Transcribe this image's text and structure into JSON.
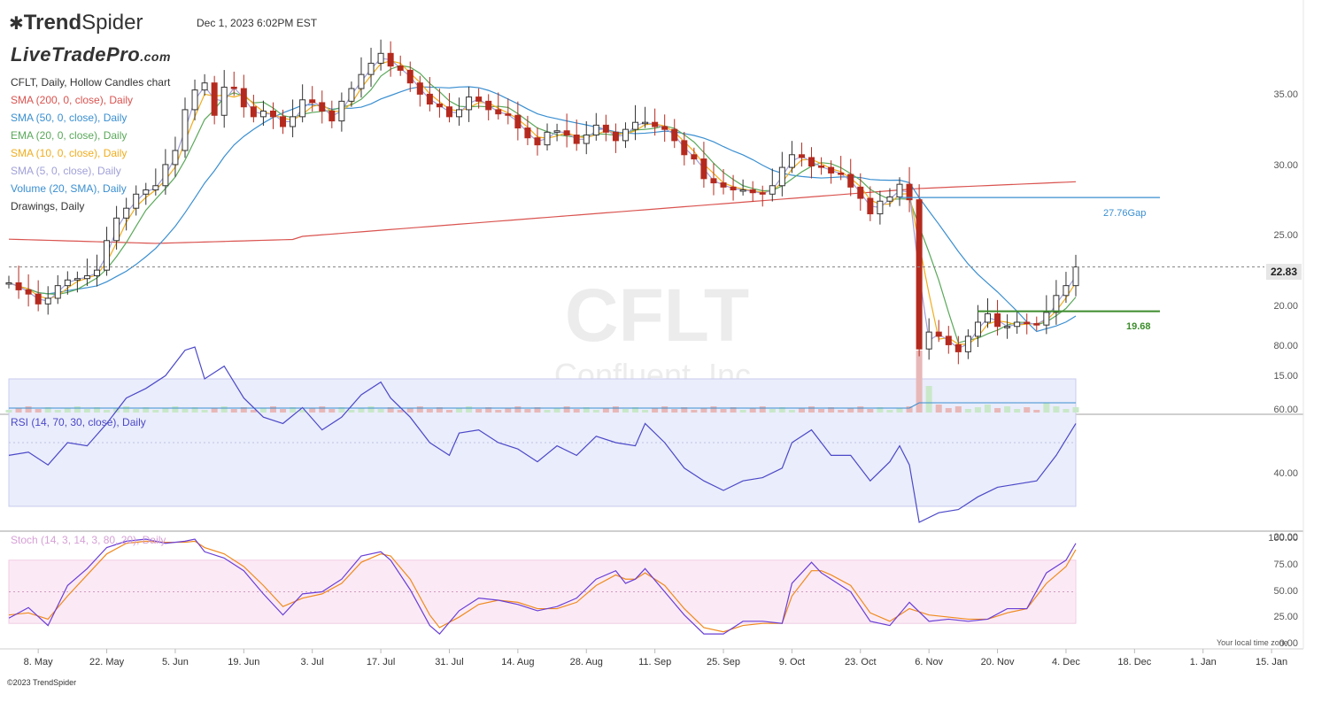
{
  "header": {
    "logo_trend": "Trend",
    "logo_spider": "Spider",
    "timestamp": "Dec 1, 2023 6:02PM EST",
    "brand": "LiveTradePro",
    "brand_domain": ".com"
  },
  "legend": [
    {
      "text": "CFLT, Daily, Hollow Candles chart",
      "color": "#333333"
    },
    {
      "text": "SMA (200, 0, close), Daily",
      "color": "#d9534f"
    },
    {
      "text": "SMA (50, 0, close), Daily",
      "color": "#3a8fd1"
    },
    {
      "text": "EMA (20, 0, close), Daily",
      "color": "#5aa85a"
    },
    {
      "text": "SMA (10, 0, close), Daily",
      "color": "#f0ad1e"
    },
    {
      "text": "SMA (5, 0, close), Daily",
      "color": "#a0a0d8"
    },
    {
      "text": "Volume (20, SMA), Daily",
      "color": "#3a8fd1"
    },
    {
      "text": "Drawings, Daily",
      "color": "#333333"
    }
  ],
  "watermark": {
    "ticker": "CFLT",
    "company": "Confluent, Inc."
  },
  "rsi_title": "RSI (14, 70, 30, close), Daily",
  "stoch_title": "Stoch (14, 3, 14, 3, 80, 20), Daily",
  "footer": "©2023 TrendSpider",
  "local_time": "Your local time zone",
  "colors": {
    "up": "#ffffff",
    "down": "#b52a1e",
    "sma200": "#d9534f",
    "sma50": "#3a8fd1",
    "ema20": "#5aa85a",
    "sma10": "#f0ad1e",
    "sma5": "#a0a0d8",
    "rsi": "#4b48c8",
    "stoch_k": "#6a3fd6",
    "stoch_d": "#f08a1e",
    "rsi_band": "#eaedfb",
    "stoch_band": "#fbeaf5"
  },
  "chart_data": {
    "type": "candlestick",
    "price_axis": {
      "ticks": [
        15,
        20,
        25,
        30,
        35
      ],
      "tick_labels": [
        "15.00",
        "20.00",
        "25.00",
        "30.00",
        "35.00"
      ]
    },
    "rsi_axis": {
      "ticks": [
        20,
        40,
        60,
        80
      ],
      "tick_labels": [
        "20.00",
        "40.00",
        "60.00",
        "80.00"
      ],
      "band": [
        30,
        70
      ]
    },
    "stoch_axis": {
      "ticks": [
        0,
        25,
        50,
        75,
        100
      ],
      "tick_labels": [
        "0.00",
        "25.00",
        "50.00",
        "75.00",
        "100.00"
      ],
      "band": [
        20,
        80
      ]
    },
    "x_labels": [
      "8. May",
      "22. May",
      "5. Jun",
      "19. Jun",
      "3. Jul",
      "17. Jul",
      "31. Jul",
      "14. Aug",
      "28. Aug",
      "11. Sep",
      "25. Sep",
      "9. Oct",
      "23. Oct",
      "6. Nov",
      "20. Nov",
      "4. Dec",
      "18. Dec",
      "1. Jan",
      "15. Jan"
    ],
    "x_label_days": [
      6,
      20,
      34,
      48,
      62,
      76,
      90,
      104,
      118,
      132,
      146,
      160,
      174,
      188,
      202,
      216,
      230,
      244,
      258
    ],
    "last_price": 22.83,
    "last_price_label": "22.83",
    "gap_level": 27.76,
    "gap_label": "27.76",
    "gap_suffix": "Gap",
    "support_level": 19.68,
    "support_label": "19.68",
    "close": [
      [
        0,
        21.7
      ],
      [
        2,
        21.2
      ],
      [
        4,
        20.9
      ],
      [
        6,
        20.2
      ],
      [
        8,
        20.6
      ],
      [
        10,
        21.5
      ],
      [
        12,
        21.9
      ],
      [
        14,
        22.0
      ],
      [
        16,
        22.2
      ],
      [
        18,
        22.6
      ],
      [
        20,
        24.7
      ],
      [
        22,
        26.3
      ],
      [
        24,
        27.0
      ],
      [
        26,
        28.0
      ],
      [
        28,
        28.3
      ],
      [
        30,
        28.6
      ],
      [
        32,
        30.1
      ],
      [
        34,
        31.1
      ],
      [
        36,
        34.0
      ],
      [
        38,
        35.4
      ],
      [
        40,
        35.9
      ],
      [
        42,
        33.6
      ],
      [
        44,
        35.6
      ],
      [
        46,
        35.5
      ],
      [
        48,
        34.2
      ],
      [
        50,
        33.5
      ],
      [
        52,
        33.9
      ],
      [
        54,
        33.5
      ],
      [
        56,
        32.8
      ],
      [
        58,
        33.5
      ],
      [
        60,
        34.7
      ],
      [
        62,
        34.5
      ],
      [
        64,
        33.9
      ],
      [
        66,
        33.2
      ],
      [
        68,
        34.6
      ],
      [
        70,
        35.5
      ],
      [
        72,
        36.5
      ],
      [
        74,
        37.3
      ],
      [
        76,
        38.0
      ],
      [
        78,
        37.1
      ],
      [
        80,
        36.8
      ],
      [
        82,
        35.9
      ],
      [
        84,
        35.1
      ],
      [
        86,
        34.4
      ],
      [
        88,
        34.2
      ],
      [
        90,
        33.5
      ],
      [
        92,
        34.0
      ],
      [
        94,
        34.9
      ],
      [
        96,
        34.6
      ],
      [
        98,
        34.0
      ],
      [
        100,
        33.7
      ],
      [
        102,
        33.6
      ],
      [
        104,
        32.7
      ],
      [
        106,
        32.0
      ],
      [
        108,
        31.5
      ],
      [
        110,
        32.4
      ],
      [
        112,
        32.5
      ],
      [
        114,
        32.2
      ],
      [
        116,
        31.6
      ],
      [
        118,
        32.2
      ],
      [
        120,
        32.9
      ],
      [
        122,
        32.4
      ],
      [
        124,
        31.8
      ],
      [
        126,
        32.6
      ],
      [
        128,
        33.1
      ],
      [
        130,
        33.1
      ],
      [
        132,
        32.8
      ],
      [
        134,
        32.6
      ],
      [
        136,
        31.8
      ],
      [
        138,
        30.8
      ],
      [
        140,
        30.5
      ],
      [
        142,
        29.1
      ],
      [
        144,
        28.8
      ],
      [
        146,
        28.5
      ],
      [
        148,
        28.3
      ],
      [
        150,
        28.3
      ],
      [
        152,
        28.1
      ],
      [
        154,
        28.0
      ],
      [
        156,
        28.6
      ],
      [
        158,
        29.9
      ],
      [
        160,
        30.8
      ],
      [
        162,
        30.6
      ],
      [
        164,
        30.0
      ],
      [
        166,
        29.9
      ],
      [
        168,
        29.5
      ],
      [
        170,
        29.4
      ],
      [
        172,
        28.5
      ],
      [
        174,
        27.7
      ],
      [
        176,
        26.6
      ],
      [
        178,
        27.5
      ],
      [
        180,
        27.8
      ],
      [
        182,
        28.7
      ],
      [
        184,
        27.6
      ],
      [
        186,
        17.0
      ],
      [
        188,
        18.2
      ],
      [
        190,
        17.9
      ],
      [
        192,
        17.3
      ],
      [
        194,
        16.8
      ],
      [
        196,
        17.9
      ],
      [
        198,
        18.9
      ],
      [
        200,
        19.5
      ],
      [
        202,
        18.6
      ],
      [
        204,
        18.6
      ],
      [
        206,
        18.9
      ],
      [
        208,
        18.8
      ],
      [
        210,
        18.7
      ],
      [
        212,
        19.6
      ],
      [
        214,
        20.8
      ],
      [
        216,
        21.5
      ],
      [
        218,
        22.83
      ]
    ],
    "rsi": [
      [
        0,
        46
      ],
      [
        4,
        47
      ],
      [
        8,
        43
      ],
      [
        12,
        50
      ],
      [
        16,
        49
      ],
      [
        20,
        56
      ],
      [
        24,
        64
      ],
      [
        28,
        67
      ],
      [
        32,
        71
      ],
      [
        36,
        79
      ],
      [
        38,
        80
      ],
      [
        40,
        70
      ],
      [
        44,
        74
      ],
      [
        48,
        64
      ],
      [
        52,
        58
      ],
      [
        56,
        56
      ],
      [
        60,
        61
      ],
      [
        64,
        54
      ],
      [
        68,
        58
      ],
      [
        72,
        65
      ],
      [
        76,
        69
      ],
      [
        78,
        64
      ],
      [
        82,
        58
      ],
      [
        86,
        50
      ],
      [
        90,
        46
      ],
      [
        92,
        53
      ],
      [
        96,
        54
      ],
      [
        100,
        50
      ],
      [
        104,
        48
      ],
      [
        108,
        44
      ],
      [
        112,
        49
      ],
      [
        116,
        46
      ],
      [
        120,
        52
      ],
      [
        124,
        50
      ],
      [
        128,
        49
      ],
      [
        130,
        56
      ],
      [
        134,
        50
      ],
      [
        138,
        42
      ],
      [
        142,
        38
      ],
      [
        146,
        35
      ],
      [
        150,
        38
      ],
      [
        154,
        39
      ],
      [
        158,
        42
      ],
      [
        160,
        50
      ],
      [
        164,
        54
      ],
      [
        168,
        46
      ],
      [
        172,
        46
      ],
      [
        176,
        38
      ],
      [
        180,
        44
      ],
      [
        182,
        49
      ],
      [
        184,
        43
      ],
      [
        186,
        25
      ],
      [
        190,
        28
      ],
      [
        194,
        29
      ],
      [
        198,
        33
      ],
      [
        202,
        36
      ],
      [
        206,
        37
      ],
      [
        210,
        38
      ],
      [
        214,
        46
      ],
      [
        218,
        56
      ]
    ],
    "stoch_k": [
      [
        0,
        25
      ],
      [
        4,
        35
      ],
      [
        8,
        18
      ],
      [
        12,
        56
      ],
      [
        16,
        72
      ],
      [
        20,
        92
      ],
      [
        24,
        98
      ],
      [
        28,
        100
      ],
      [
        32,
        96
      ],
      [
        36,
        98
      ],
      [
        38,
        100
      ],
      [
        40,
        88
      ],
      [
        44,
        82
      ],
      [
        48,
        70
      ],
      [
        52,
        48
      ],
      [
        56,
        28
      ],
      [
        60,
        48
      ],
      [
        64,
        50
      ],
      [
        68,
        62
      ],
      [
        72,
        84
      ],
      [
        76,
        88
      ],
      [
        78,
        80
      ],
      [
        82,
        52
      ],
      [
        86,
        18
      ],
      [
        88,
        10
      ],
      [
        92,
        32
      ],
      [
        96,
        44
      ],
      [
        100,
        42
      ],
      [
        104,
        38
      ],
      [
        108,
        32
      ],
      [
        112,
        36
      ],
      [
        116,
        44
      ],
      [
        120,
        62
      ],
      [
        124,
        70
      ],
      [
        126,
        58
      ],
      [
        128,
        62
      ],
      [
        130,
        72
      ],
      [
        134,
        50
      ],
      [
        138,
        28
      ],
      [
        142,
        10
      ],
      [
        146,
        10
      ],
      [
        150,
        22
      ],
      [
        154,
        22
      ],
      [
        158,
        20
      ],
      [
        160,
        58
      ],
      [
        164,
        78
      ],
      [
        166,
        68
      ],
      [
        168,
        62
      ],
      [
        172,
        50
      ],
      [
        176,
        22
      ],
      [
        180,
        18
      ],
      [
        184,
        40
      ],
      [
        188,
        22
      ],
      [
        192,
        24
      ],
      [
        196,
        22
      ],
      [
        200,
        24
      ],
      [
        204,
        34
      ],
      [
        208,
        34
      ],
      [
        212,
        68
      ],
      [
        216,
        80
      ],
      [
        218,
        96
      ]
    ],
    "stoch_d": [
      [
        0,
        28
      ],
      [
        4,
        30
      ],
      [
        8,
        24
      ],
      [
        12,
        46
      ],
      [
        16,
        66
      ],
      [
        20,
        86
      ],
      [
        24,
        96
      ],
      [
        28,
        98
      ],
      [
        32,
        97
      ],
      [
        36,
        97
      ],
      [
        38,
        98
      ],
      [
        40,
        92
      ],
      [
        44,
        86
      ],
      [
        48,
        74
      ],
      [
        52,
        56
      ],
      [
        56,
        36
      ],
      [
        60,
        44
      ],
      [
        64,
        48
      ],
      [
        68,
        58
      ],
      [
        72,
        78
      ],
      [
        76,
        86
      ],
      [
        78,
        84
      ],
      [
        82,
        62
      ],
      [
        86,
        28
      ],
      [
        88,
        16
      ],
      [
        92,
        26
      ],
      [
        96,
        38
      ],
      [
        100,
        42
      ],
      [
        104,
        40
      ],
      [
        108,
        34
      ],
      [
        112,
        34
      ],
      [
        116,
        40
      ],
      [
        120,
        56
      ],
      [
        124,
        66
      ],
      [
        126,
        62
      ],
      [
        128,
        62
      ],
      [
        130,
        68
      ],
      [
        134,
        56
      ],
      [
        138,
        34
      ],
      [
        142,
        16
      ],
      [
        146,
        12
      ],
      [
        150,
        18
      ],
      [
        154,
        20
      ],
      [
        158,
        20
      ],
      [
        160,
        46
      ],
      [
        164,
        70
      ],
      [
        166,
        70
      ],
      [
        168,
        66
      ],
      [
        172,
        56
      ],
      [
        176,
        30
      ],
      [
        180,
        22
      ],
      [
        184,
        34
      ],
      [
        188,
        28
      ],
      [
        192,
        26
      ],
      [
        196,
        24
      ],
      [
        200,
        24
      ],
      [
        204,
        30
      ],
      [
        208,
        34
      ],
      [
        212,
        58
      ],
      [
        216,
        74
      ],
      [
        218,
        90
      ]
    ]
  }
}
